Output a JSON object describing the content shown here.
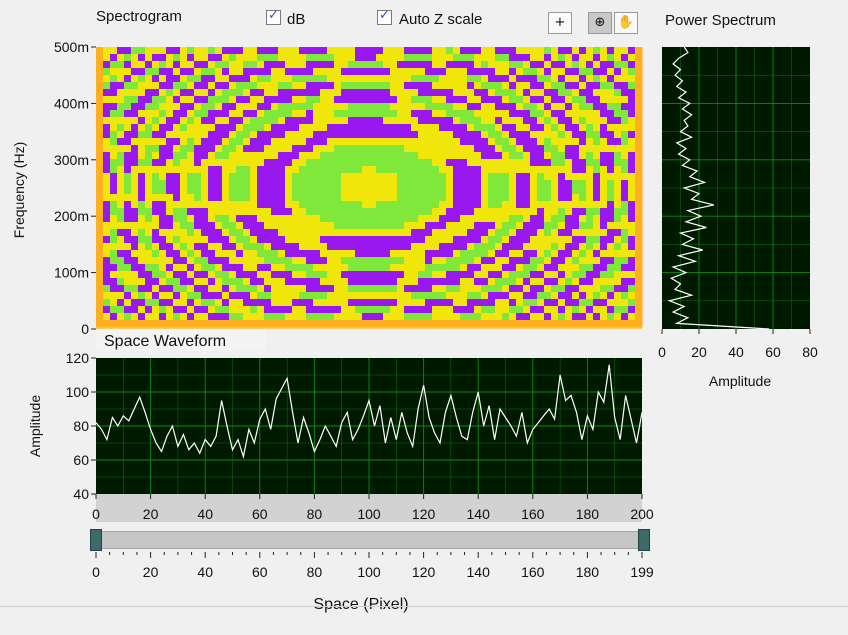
{
  "colors": {
    "plot_background": "#001a00",
    "grid": "#0f8a0f",
    "trace": "#ffffff",
    "spectrogram": [
      "#9a18f0",
      "#7fe83a",
      "#f0e60a",
      "#ffb020",
      "#ffd040"
    ]
  },
  "controls": {
    "spectrogram_label": "Spectrogram",
    "db_checkbox": {
      "label": "dB",
      "checked": true
    },
    "autoz_checkbox": {
      "label": "Auto Z scale",
      "checked": true
    },
    "tools": [
      {
        "icon": "crosshair-icon",
        "glyph": "+"
      },
      {
        "icon": "zoom-icon",
        "glyph": "⊕"
      },
      {
        "icon": "pan-hand-icon",
        "glyph": "✋"
      }
    ]
  },
  "chart_data": [
    {
      "title": "Spectrogram",
      "type": "heatmap",
      "ylabel": "Frequency (Hz)",
      "y_ticks": [
        "0",
        "100m",
        "200m",
        "300m",
        "400m",
        "500m"
      ],
      "ylim": [
        0,
        0.5
      ],
      "xlim": [
        0,
        200
      ]
    },
    {
      "title": "Power Spectrum",
      "type": "line",
      "xlabel": "Amplitude",
      "x_ticks": [
        "0",
        "20",
        "40",
        "60",
        "80"
      ],
      "xlim": [
        0,
        80
      ],
      "ylim": [
        0,
        0.5
      ],
      "series": [
        {
          "freq": [
            0.0,
            0.01,
            0.02,
            0.03,
            0.04,
            0.05,
            0.06,
            0.07,
            0.08,
            0.09,
            0.1,
            0.11,
            0.12,
            0.13,
            0.14,
            0.15,
            0.16,
            0.17,
            0.18,
            0.19,
            0.2,
            0.21,
            0.22,
            0.23,
            0.24,
            0.25,
            0.26,
            0.27,
            0.28,
            0.29,
            0.3,
            0.31,
            0.32,
            0.33,
            0.34,
            0.35,
            0.36,
            0.37,
            0.38,
            0.39,
            0.4,
            0.41,
            0.42,
            0.43,
            0.44,
            0.45,
            0.46,
            0.47,
            0.48,
            0.49,
            0.5
          ],
          "amplitude": [
            58,
            8,
            14,
            6,
            12,
            4,
            16,
            7,
            10,
            5,
            13,
            6,
            18,
            9,
            22,
            11,
            17,
            10,
            24,
            13,
            21,
            14,
            28,
            16,
            20,
            12,
            23,
            15,
            19,
            11,
            15,
            9,
            13,
            8,
            16,
            10,
            14,
            12,
            16,
            11,
            15,
            9,
            13,
            8,
            11,
            7,
            10,
            6,
            9,
            14,
            12
          ]
        }
      ]
    },
    {
      "title": "Space Waveform",
      "type": "line",
      "xlabel": "Space (Pixel)",
      "ylabel": "Amplitude",
      "x_ticks": [
        "0",
        "20",
        "40",
        "60",
        "80",
        "100",
        "120",
        "140",
        "160",
        "180",
        "200"
      ],
      "y_ticks": [
        "40",
        "60",
        "80",
        "100",
        "120"
      ],
      "xlim": [
        0,
        200
      ],
      "ylim": [
        40,
        120
      ],
      "series": [
        {
          "x": [
            0,
            2,
            4,
            6,
            8,
            10,
            12,
            14,
            16,
            18,
            20,
            22,
            24,
            26,
            28,
            30,
            32,
            34,
            36,
            38,
            40,
            42,
            44,
            46,
            48,
            50,
            52,
            54,
            56,
            58,
            60,
            62,
            64,
            66,
            68,
            70,
            72,
            74,
            76,
            78,
            80,
            82,
            84,
            86,
            88,
            90,
            92,
            94,
            96,
            98,
            100,
            102,
            104,
            106,
            108,
            110,
            112,
            114,
            116,
            118,
            120,
            122,
            124,
            126,
            128,
            130,
            132,
            134,
            136,
            138,
            140,
            142,
            144,
            146,
            148,
            150,
            152,
            154,
            156,
            158,
            160,
            162,
            164,
            166,
            168,
            170,
            172,
            174,
            176,
            178,
            180,
            182,
            184,
            186,
            188,
            190,
            192,
            194,
            196,
            198,
            200
          ],
          "y": [
            82,
            78,
            72,
            85,
            80,
            86,
            83,
            90,
            97,
            88,
            78,
            70,
            65,
            74,
            80,
            68,
            75,
            66,
            70,
            64,
            72,
            68,
            74,
            95,
            80,
            66,
            72,
            62,
            78,
            70,
            84,
            90,
            78,
            96,
            102,
            108,
            88,
            70,
            85,
            76,
            65,
            72,
            80,
            74,
            68,
            82,
            88,
            72,
            78,
            86,
            95,
            80,
            92,
            70,
            85,
            72,
            88,
            76,
            68,
            90,
            104,
            85,
            76,
            70,
            88,
            98,
            85,
            74,
            72,
            88,
            100,
            80,
            92,
            72,
            90,
            85,
            80,
            74,
            88,
            70,
            78,
            82,
            86,
            90,
            84,
            110,
            95,
            98,
            88,
            72,
            86,
            78,
            100,
            94,
            116,
            85,
            72,
            98,
            84,
            70,
            88
          ]
        }
      ]
    }
  ],
  "slider": {
    "value_start": 0,
    "value_end": 199,
    "range": [
      0,
      199
    ],
    "ticks": [
      "0",
      "20",
      "40",
      "60",
      "80",
      "100",
      "120",
      "140",
      "160",
      "180",
      "199"
    ]
  }
}
